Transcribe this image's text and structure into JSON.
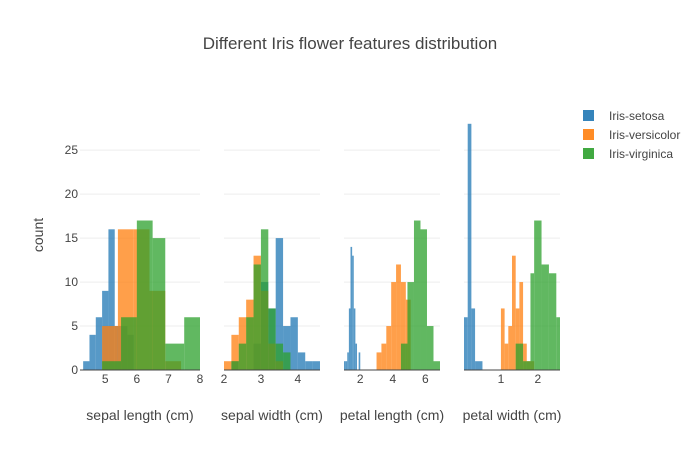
{
  "chart_data": {
    "type": "histogram",
    "title": "Different Iris flower features distribution",
    "ylabel": "count",
    "ylim": [
      0,
      29
    ],
    "yticks": [
      0,
      5,
      10,
      15,
      20,
      25
    ],
    "legend": {
      "placement": "right",
      "entries": [
        {
          "name": "Iris-setosa",
          "color": "#1f77b4"
        },
        {
          "name": "Iris-versicolor",
          "color": "#ff7f0e"
        },
        {
          "name": "Iris-virginica",
          "color": "#2ca02c"
        }
      ]
    },
    "panels": [
      {
        "xlabel": "sepal length (cm)",
        "xlim": [
          4.2,
          8.0
        ],
        "xticks": [
          5,
          6,
          7,
          8
        ],
        "series": [
          {
            "name": "Iris-setosa",
            "bins": [
              [
                4.3,
                4.5,
                1
              ],
              [
                4.5,
                4.7,
                4
              ],
              [
                4.7,
                4.9,
                6
              ],
              [
                4.9,
                5.1,
                9
              ],
              [
                5.1,
                5.3,
                16
              ],
              [
                5.3,
                5.5,
                5
              ],
              [
                5.5,
                5.7,
                5
              ],
              [
                5.7,
                5.9,
                4
              ]
            ]
          },
          {
            "name": "Iris-versicolor",
            "bins": [
              [
                4.9,
                5.4,
                5
              ],
              [
                5.4,
                5.9,
                16
              ],
              [
                5.9,
                6.4,
                16
              ],
              [
                6.4,
                6.9,
                9
              ],
              [
                6.9,
                7.4,
                1
              ]
            ]
          },
          {
            "name": "Iris-virginica",
            "bins": [
              [
                4.9,
                5.5,
                1
              ],
              [
                5.5,
                6.0,
                6
              ],
              [
                6.0,
                6.5,
                17
              ],
              [
                6.5,
                6.9,
                15
              ],
              [
                6.9,
                7.5,
                3
              ],
              [
                7.5,
                8.0,
                6
              ]
            ]
          }
        ]
      },
      {
        "xlabel": "sepal width (cm)",
        "xlim": [
          2.0,
          4.6
        ],
        "xticks": [
          2,
          3,
          4
        ],
        "series": [
          {
            "name": "Iris-setosa",
            "bins": [
              [
                2.2,
                2.4,
                1
              ],
              [
                2.8,
                3.0,
                3
              ],
              [
                3.0,
                3.2,
                10
              ],
              [
                3.2,
                3.4,
                7
              ],
              [
                3.4,
                3.6,
                15
              ],
              [
                3.6,
                3.8,
                5
              ],
              [
                3.8,
                4.0,
                6
              ],
              [
                4.0,
                4.2,
                2
              ],
              [
                4.2,
                4.4,
                1
              ],
              [
                4.4,
                4.6,
                1
              ]
            ]
          },
          {
            "name": "Iris-versicolor",
            "bins": [
              [
                2.0,
                2.2,
                1
              ],
              [
                2.2,
                2.4,
                4
              ],
              [
                2.4,
                2.6,
                6
              ],
              [
                2.6,
                2.8,
                8
              ],
              [
                2.8,
                3.0,
                13
              ],
              [
                3.0,
                3.2,
                9
              ],
              [
                3.2,
                3.4,
                3
              ],
              [
                3.4,
                3.6,
                1
              ]
            ]
          },
          {
            "name": "Iris-virginica",
            "bins": [
              [
                2.2,
                2.4,
                1
              ],
              [
                2.4,
                2.6,
                3
              ],
              [
                2.6,
                2.8,
                6
              ],
              [
                2.8,
                3.0,
                12
              ],
              [
                3.0,
                3.2,
                16
              ],
              [
                3.2,
                3.4,
                7
              ],
              [
                3.4,
                3.6,
                3
              ],
              [
                3.6,
                3.8,
                2
              ]
            ]
          }
        ]
      },
      {
        "xlabel": "petal length (cm)",
        "xlim": [
          1.0,
          6.9
        ],
        "xticks": [
          2,
          4,
          6
        ],
        "series": [
          {
            "name": "Iris-setosa",
            "bins": [
              [
                1.0,
                1.1,
                1
              ],
              [
                1.1,
                1.2,
                1
              ],
              [
                1.2,
                1.3,
                2
              ],
              [
                1.3,
                1.4,
                7
              ],
              [
                1.4,
                1.5,
                14
              ],
              [
                1.5,
                1.6,
                13
              ],
              [
                1.6,
                1.7,
                7
              ],
              [
                1.7,
                1.8,
                3
              ],
              [
                1.9,
                2.0,
                2
              ]
            ]
          },
          {
            "name": "Iris-versicolor",
            "bins": [
              [
                3.0,
                3.3,
                2
              ],
              [
                3.3,
                3.6,
                3
              ],
              [
                3.6,
                3.9,
                5
              ],
              [
                3.9,
                4.2,
                10
              ],
              [
                4.2,
                4.5,
                12
              ],
              [
                4.5,
                4.8,
                10
              ],
              [
                4.8,
                5.1,
                8
              ]
            ]
          },
          {
            "name": "Iris-virginica",
            "bins": [
              [
                4.5,
                4.9,
                3
              ],
              [
                4.9,
                5.3,
                10
              ],
              [
                5.3,
                5.7,
                17
              ],
              [
                5.7,
                6.1,
                16
              ],
              [
                6.1,
                6.5,
                5
              ],
              [
                6.5,
                6.9,
                1
              ]
            ]
          }
        ]
      },
      {
        "xlabel": "petal width (cm)",
        "xlim": [
          0.0,
          2.6
        ],
        "xticks": [
          1,
          2
        ],
        "series": [
          {
            "name": "Iris-setosa",
            "bins": [
              [
                0.0,
                0.1,
                6
              ],
              [
                0.1,
                0.2,
                28
              ],
              [
                0.2,
                0.3,
                7
              ],
              [
                0.3,
                0.5,
                1
              ]
            ]
          },
          {
            "name": "Iris-versicolor",
            "bins": [
              [
                1.0,
                1.1,
                7
              ],
              [
                1.1,
                1.2,
                3
              ],
              [
                1.2,
                1.3,
                5
              ],
              [
                1.3,
                1.4,
                13
              ],
              [
                1.4,
                1.5,
                7
              ],
              [
                1.5,
                1.6,
                10
              ],
              [
                1.6,
                1.7,
                3
              ],
              [
                1.7,
                1.8,
                1
              ],
              [
                1.8,
                1.9,
                1
              ]
            ]
          },
          {
            "name": "Iris-virginica",
            "bins": [
              [
                1.4,
                1.6,
                3
              ],
              [
                1.6,
                1.8,
                1
              ],
              [
                1.8,
                1.9,
                11
              ],
              [
                1.9,
                2.1,
                17
              ],
              [
                2.1,
                2.3,
                12
              ],
              [
                2.3,
                2.5,
                11
              ],
              [
                2.5,
                2.6,
                6
              ]
            ]
          }
        ]
      }
    ]
  }
}
